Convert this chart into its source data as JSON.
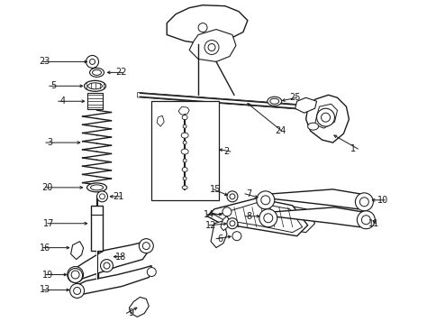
{
  "bg_color": "#ffffff",
  "line_color": "#1a1a1a",
  "figsize": [
    4.85,
    3.57
  ],
  "dpi": 100,
  "xlim": [
    0,
    485
  ],
  "ylim": [
    0,
    357
  ]
}
